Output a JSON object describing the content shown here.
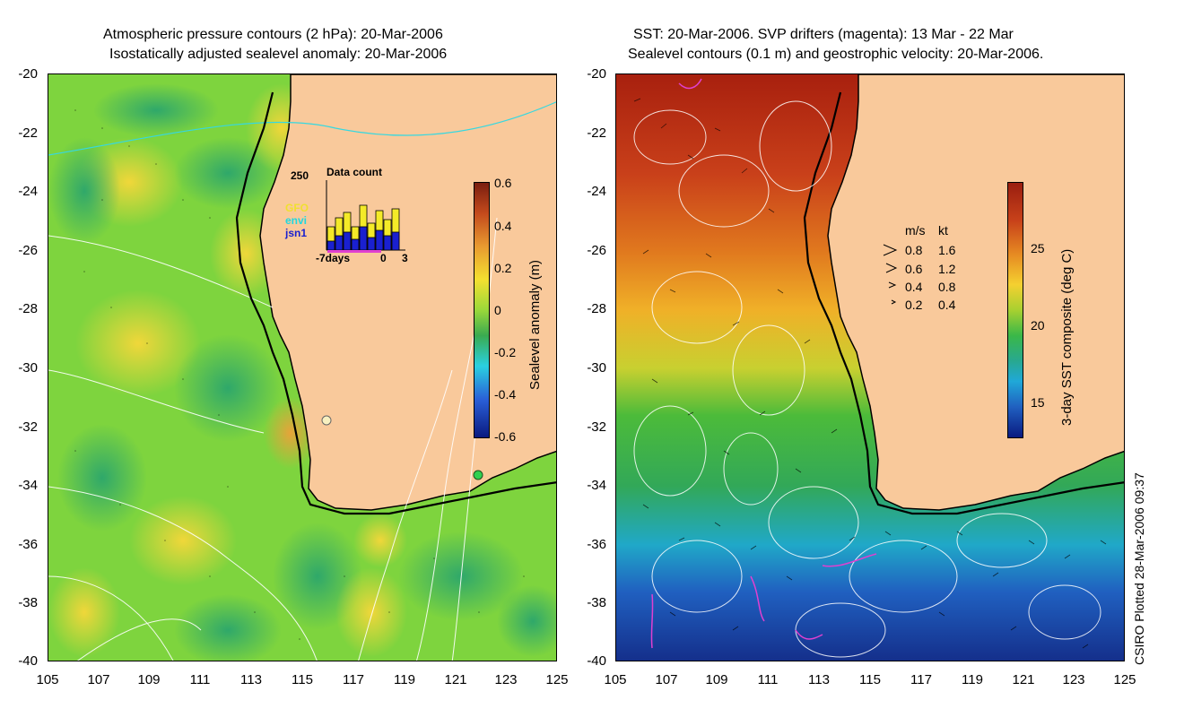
{
  "left_panel": {
    "title_line1": "Atmospheric pressure contours (2 hPa): 20-Mar-2006",
    "title_line2": "Isostatically adjusted sealevel anomaly: 20-Mar-2006",
    "colorbar_label": "Sealevel anomaly (m)",
    "colorbar_ticks": [
      "0.6",
      "0.4",
      "0.2",
      "0",
      "-0.2",
      "-0.4",
      "-0.6"
    ],
    "inset": {
      "title": "Data count",
      "ymax_label": "250",
      "x_labels": [
        "-7days",
        "0",
        "3"
      ],
      "legend": [
        "GFO",
        "envi",
        "jsn1"
      ]
    }
  },
  "right_panel": {
    "title_line1": "SST: 20-Mar-2006. SVP drifters (magenta): 13 Mar - 22 Mar",
    "title_line2": "Sealevel contours (0.1 m) and geostrophic velocity: 20-Mar-2006.",
    "colorbar_label": "3-day SST composite (deg C)",
    "colorbar_ticks": [
      "25",
      "20",
      "15"
    ],
    "velocity_legend": {
      "header_ms": "m/s",
      "header_kt": "kt",
      "rows": [
        {
          "ms": "0.8",
          "kt": "1.6"
        },
        {
          "ms": "0.6",
          "kt": "1.2"
        },
        {
          "ms": "0.4",
          "kt": "0.8"
        },
        {
          "ms": "0.2",
          "kt": "0.4"
        }
      ]
    }
  },
  "axes": {
    "y_ticks": [
      "-20",
      "-22",
      "-24",
      "-26",
      "-28",
      "-30",
      "-32",
      "-34",
      "-36",
      "-38",
      "-40"
    ],
    "x_ticks": [
      "105",
      "107",
      "109",
      "111",
      "113",
      "115",
      "117",
      "119",
      "121",
      "123",
      "125"
    ]
  },
  "credit": "CSIRO Plotted 28-Mar-2006 09:37",
  "colors": {
    "land": "#f9c99b",
    "sla_green": "#5ec94a",
    "sla_yellowgreen": "#a8e03a",
    "sst_warm": "#b4271a",
    "sst_cool": "#1e4fb8"
  }
}
